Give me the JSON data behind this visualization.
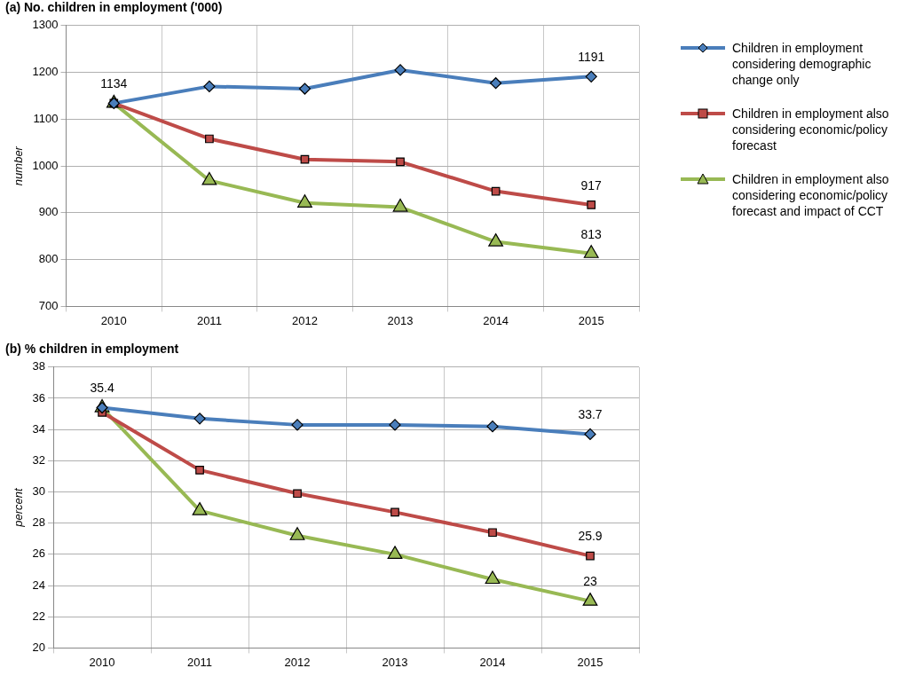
{
  "chart_data": [
    {
      "type": "line",
      "title": "(a) No. children in employment ('000)",
      "ylabel": "number",
      "categories": [
        "2010",
        "2011",
        "2012",
        "2013",
        "2014",
        "2015"
      ],
      "series": [
        {
          "name": "Children in employment considering demographic change only",
          "color": "#4a7ebb",
          "marker": "diamond",
          "values": [
            1134,
            1170,
            1165,
            1205,
            1177,
            1191
          ]
        },
        {
          "name": "Children in employment also considering economic/policy forecast",
          "color": "#be4b48",
          "marker": "square",
          "values": [
            1134,
            1058,
            1014,
            1009,
            946,
            917
          ]
        },
        {
          "name": "Children in employment also considering economic/policy forecast and impact of CCT",
          "color": "#98b954",
          "marker": "triangle",
          "values": [
            1134,
            969,
            921,
            912,
            838,
            813
          ]
        }
      ],
      "ylim": [
        700,
        1300
      ],
      "yticks": [
        700,
        800,
        900,
        1000,
        1100,
        1200,
        1300
      ],
      "grid": true,
      "legend": "right",
      "line_style": "solid",
      "annotations": [
        {
          "text": "1134",
          "x": "2010",
          "y": 1134
        },
        {
          "text": "1191",
          "x": "2015",
          "y": 1191
        },
        {
          "text": "917",
          "x": "2015",
          "y": 917
        },
        {
          "text": "813",
          "x": "2015",
          "y": 813
        }
      ]
    },
    {
      "type": "line",
      "title": "(b) % children in employment",
      "ylabel": "percent",
      "categories": [
        "2010",
        "2011",
        "2012",
        "2013",
        "2014",
        "2015"
      ],
      "series": [
        {
          "color": "#4a7ebb",
          "marker": "diamond",
          "values": [
            35.4,
            34.7,
            34.3,
            34.3,
            34.2,
            33.7
          ]
        },
        {
          "color": "#be4b48",
          "marker": "square",
          "values": [
            35.1,
            31.4,
            29.9,
            28.7,
            27.4,
            25.9
          ]
        },
        {
          "color": "#98b954",
          "marker": "triangle",
          "values": [
            35.4,
            28.8,
            27.2,
            26.0,
            24.4,
            23
          ]
        }
      ],
      "ylim": [
        20,
        38
      ],
      "yticks": [
        20,
        22,
        24,
        26,
        28,
        30,
        32,
        34,
        36,
        38
      ],
      "grid": true,
      "legend": false,
      "line_style": "solid",
      "annotations": [
        {
          "text": "35.4",
          "x": "2010",
          "y": 35.4
        },
        {
          "text": "33.7",
          "x": "2015",
          "y": 33.7
        },
        {
          "text": "25.9",
          "x": "2015",
          "y": 25.9
        },
        {
          "text": "23",
          "x": "2015",
          "y": 23
        }
      ]
    }
  ]
}
